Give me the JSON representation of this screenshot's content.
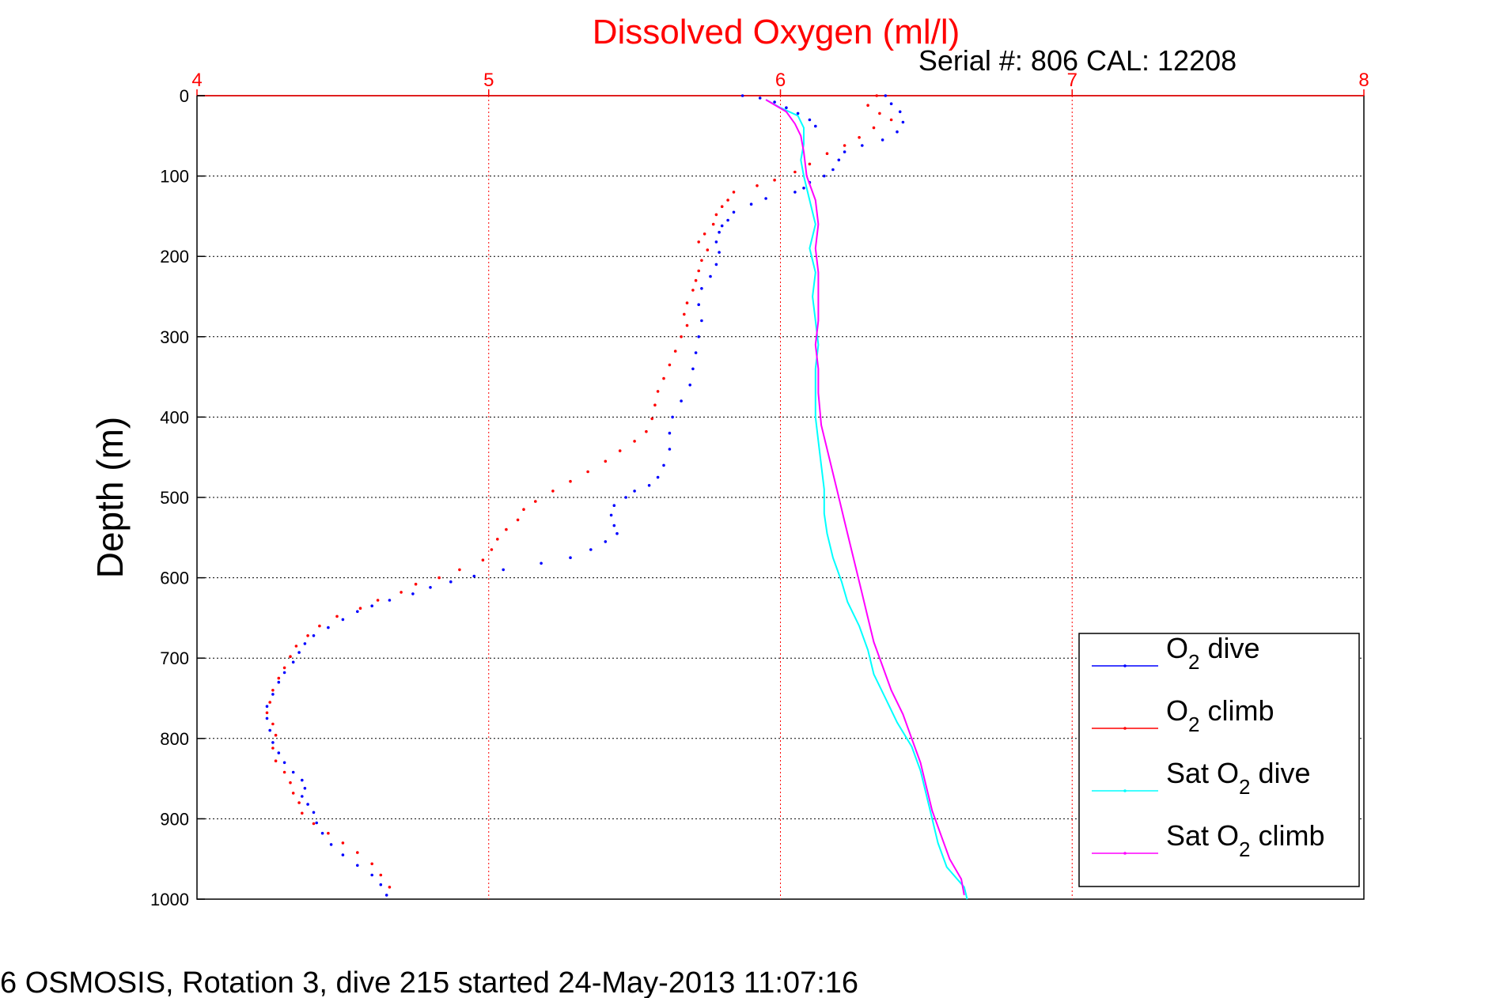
{
  "chart_data": {
    "type": "scatter",
    "title": "Dissolved Oxygen (ml/l)",
    "subtitle": "Serial #: 806  CAL: 12208",
    "ylabel": "Depth (m)",
    "footer": "6 OSMOSIS, Rotation 3, dive 215 started 24-May-2013 11:07:16",
    "xlim": [
      4,
      8
    ],
    "ylim": [
      0,
      1000
    ],
    "y_reversed": true,
    "x_axis_position": "top",
    "x_ticks": [
      "4",
      "5",
      "6",
      "7",
      "8"
    ],
    "y_ticks": [
      "0",
      "100",
      "200",
      "300",
      "400",
      "500",
      "600",
      "700",
      "800",
      "900",
      "1000"
    ],
    "grid": true,
    "legend_position": "bottom-right",
    "colors": {
      "title": "#ff0000",
      "x_axis": "#ff0000",
      "grid_x": "#ff0000",
      "grid_y": "#000000",
      "o2_dive": "#0000ff",
      "o2_climb": "#ff0000",
      "sat_dive": "#00ffff",
      "sat_climb": "#ff00ff"
    },
    "series": [
      {
        "name": "O2 dive",
        "legend_main": "O",
        "legend_sub": "2",
        "legend_rest": " dive",
        "style": "dots",
        "color": "#0000ff",
        "points": [
          [
            5.87,
            0
          ],
          [
            5.93,
            3
          ],
          [
            5.98,
            8
          ],
          [
            6.02,
            15
          ],
          [
            6.06,
            22
          ],
          [
            6.1,
            30
          ],
          [
            6.12,
            38
          ],
          [
            6.36,
            0
          ],
          [
            6.38,
            10
          ],
          [
            6.41,
            20
          ],
          [
            6.42,
            33
          ],
          [
            6.4,
            45
          ],
          [
            6.35,
            55
          ],
          [
            6.28,
            62
          ],
          [
            6.22,
            70
          ],
          [
            6.2,
            80
          ],
          [
            6.18,
            92
          ],
          [
            6.15,
            100
          ],
          [
            6.1,
            108
          ],
          [
            6.08,
            115
          ],
          [
            6.05,
            120
          ],
          [
            5.95,
            128
          ],
          [
            5.9,
            135
          ],
          [
            5.84,
            145
          ],
          [
            5.82,
            155
          ],
          [
            5.8,
            162
          ],
          [
            5.79,
            170
          ],
          [
            5.78,
            182
          ],
          [
            5.79,
            195
          ],
          [
            5.78,
            210
          ],
          [
            5.76,
            225
          ],
          [
            5.73,
            240
          ],
          [
            5.72,
            260
          ],
          [
            5.73,
            280
          ],
          [
            5.72,
            300
          ],
          [
            5.71,
            320
          ],
          [
            5.7,
            340
          ],
          [
            5.69,
            360
          ],
          [
            5.66,
            380
          ],
          [
            5.63,
            400
          ],
          [
            5.62,
            420
          ],
          [
            5.62,
            440
          ],
          [
            5.6,
            460
          ],
          [
            5.58,
            475
          ],
          [
            5.55,
            485
          ],
          [
            5.5,
            492
          ],
          [
            5.47,
            500
          ],
          [
            5.43,
            510
          ],
          [
            5.42,
            522
          ],
          [
            5.43,
            535
          ],
          [
            5.44,
            545
          ],
          [
            5.4,
            555
          ],
          [
            5.35,
            565
          ],
          [
            5.28,
            575
          ],
          [
            5.18,
            582
          ],
          [
            5.05,
            590
          ],
          [
            4.95,
            598
          ],
          [
            4.87,
            605
          ],
          [
            4.8,
            612
          ],
          [
            4.74,
            620
          ],
          [
            4.66,
            628
          ],
          [
            4.6,
            635
          ],
          [
            4.55,
            642
          ],
          [
            4.5,
            652
          ],
          [
            4.45,
            662
          ],
          [
            4.4,
            672
          ],
          [
            4.37,
            682
          ],
          [
            4.35,
            693
          ],
          [
            4.33,
            705
          ],
          [
            4.3,
            718
          ],
          [
            4.28,
            730
          ],
          [
            4.26,
            745
          ],
          [
            4.24,
            760
          ],
          [
            4.24,
            775
          ],
          [
            4.25,
            790
          ],
          [
            4.26,
            805
          ],
          [
            4.28,
            818
          ],
          [
            4.3,
            830
          ],
          [
            4.33,
            842
          ],
          [
            4.36,
            852
          ],
          [
            4.37,
            862
          ],
          [
            4.36,
            872
          ],
          [
            4.38,
            882
          ],
          [
            4.4,
            892
          ],
          [
            4.41,
            905
          ],
          [
            4.43,
            918
          ],
          [
            4.46,
            932
          ],
          [
            4.5,
            945
          ],
          [
            4.55,
            958
          ],
          [
            4.6,
            970
          ],
          [
            4.63,
            982
          ],
          [
            4.65,
            995
          ]
        ]
      },
      {
        "name": "O2 climb",
        "legend_main": "O",
        "legend_sub": "2",
        "legend_rest": " climb",
        "style": "dots",
        "color": "#ff0000",
        "points": [
          [
            6.33,
            0
          ],
          [
            6.3,
            12
          ],
          [
            6.34,
            22
          ],
          [
            6.38,
            30
          ],
          [
            6.32,
            40
          ],
          [
            6.27,
            52
          ],
          [
            6.22,
            62
          ],
          [
            6.16,
            72
          ],
          [
            6.1,
            85
          ],
          [
            6.05,
            95
          ],
          [
            5.98,
            105
          ],
          [
            5.92,
            112
          ],
          [
            5.84,
            120
          ],
          [
            5.82,
            130
          ],
          [
            5.8,
            138
          ],
          [
            5.78,
            148
          ],
          [
            5.77,
            160
          ],
          [
            5.74,
            172
          ],
          [
            5.72,
            182
          ],
          [
            5.75,
            192
          ],
          [
            5.73,
            205
          ],
          [
            5.72,
            218
          ],
          [
            5.71,
            230
          ],
          [
            5.7,
            242
          ],
          [
            5.68,
            258
          ],
          [
            5.67,
            272
          ],
          [
            5.68,
            286
          ],
          [
            5.66,
            300
          ],
          [
            5.64,
            318
          ],
          [
            5.62,
            335
          ],
          [
            5.6,
            352
          ],
          [
            5.58,
            368
          ],
          [
            5.57,
            385
          ],
          [
            5.56,
            402
          ],
          [
            5.54,
            418
          ],
          [
            5.5,
            430
          ],
          [
            5.45,
            442
          ],
          [
            5.4,
            455
          ],
          [
            5.34,
            468
          ],
          [
            5.28,
            480
          ],
          [
            5.22,
            492
          ],
          [
            5.16,
            505
          ],
          [
            5.12,
            515
          ],
          [
            5.1,
            528
          ],
          [
            5.06,
            540
          ],
          [
            5.03,
            552
          ],
          [
            5.01,
            565
          ],
          [
            4.98,
            578
          ],
          [
            4.9,
            590
          ],
          [
            4.83,
            600
          ],
          [
            4.75,
            608
          ],
          [
            4.7,
            618
          ],
          [
            4.62,
            628
          ],
          [
            4.56,
            638
          ],
          [
            4.48,
            648
          ],
          [
            4.42,
            660
          ],
          [
            4.38,
            672
          ],
          [
            4.34,
            685
          ],
          [
            4.32,
            698
          ],
          [
            4.3,
            712
          ],
          [
            4.28,
            725
          ],
          [
            4.26,
            740
          ],
          [
            4.25,
            755
          ],
          [
            4.24,
            768
          ],
          [
            4.26,
            782
          ],
          [
            4.27,
            796
          ],
          [
            4.26,
            812
          ],
          [
            4.27,
            828
          ],
          [
            4.3,
            842
          ],
          [
            4.32,
            855
          ],
          [
            4.33,
            868
          ],
          [
            4.35,
            880
          ],
          [
            4.36,
            893
          ],
          [
            4.4,
            906
          ],
          [
            4.45,
            918
          ],
          [
            4.5,
            930
          ],
          [
            4.55,
            942
          ],
          [
            4.6,
            956
          ],
          [
            4.63,
            970
          ],
          [
            4.66,
            985
          ]
        ]
      },
      {
        "name": "Sat O2 dive",
        "legend_main": "Sat O",
        "legend_sub": "2",
        "legend_rest": " dive",
        "style": "line",
        "color": "#00ffff",
        "points": [
          [
            5.95,
            5
          ],
          [
            6.0,
            15
          ],
          [
            6.06,
            25
          ],
          [
            6.08,
            40
          ],
          [
            6.08,
            60
          ],
          [
            6.07,
            80
          ],
          [
            6.08,
            100
          ],
          [
            6.1,
            130
          ],
          [
            6.12,
            160
          ],
          [
            6.1,
            190
          ],
          [
            6.12,
            220
          ],
          [
            6.11,
            250
          ],
          [
            6.12,
            280
          ],
          [
            6.13,
            310
          ],
          [
            6.12,
            340
          ],
          [
            6.12,
            370
          ],
          [
            6.12,
            400
          ],
          [
            6.13,
            430
          ],
          [
            6.14,
            460
          ],
          [
            6.15,
            490
          ],
          [
            6.15,
            520
          ],
          [
            6.16,
            545
          ],
          [
            6.18,
            575
          ],
          [
            6.21,
            605
          ],
          [
            6.23,
            630
          ],
          [
            6.27,
            660
          ],
          [
            6.3,
            690
          ],
          [
            6.32,
            720
          ],
          [
            6.36,
            750
          ],
          [
            6.4,
            780
          ],
          [
            6.45,
            810
          ],
          [
            6.48,
            840
          ],
          [
            6.5,
            870
          ],
          [
            6.52,
            900
          ],
          [
            6.54,
            930
          ],
          [
            6.57,
            960
          ],
          [
            6.63,
            985
          ],
          [
            6.64,
            1000
          ]
        ]
      },
      {
        "name": "Sat O2 climb",
        "legend_main": "Sat O",
        "legend_sub": "2",
        "legend_rest": " climb",
        "style": "line",
        "color": "#ff00ff",
        "points": [
          [
            5.95,
            5
          ],
          [
            6.02,
            20
          ],
          [
            6.05,
            35
          ],
          [
            6.07,
            50
          ],
          [
            6.08,
            70
          ],
          [
            6.09,
            100
          ],
          [
            6.12,
            130
          ],
          [
            6.13,
            160
          ],
          [
            6.12,
            190
          ],
          [
            6.13,
            220
          ],
          [
            6.13,
            250
          ],
          [
            6.13,
            280
          ],
          [
            6.12,
            310
          ],
          [
            6.13,
            340
          ],
          [
            6.13,
            370
          ],
          [
            6.14,
            410
          ],
          [
            6.16,
            440
          ],
          [
            6.18,
            470
          ],
          [
            6.2,
            500
          ],
          [
            6.22,
            530
          ],
          [
            6.24,
            560
          ],
          [
            6.26,
            590
          ],
          [
            6.28,
            620
          ],
          [
            6.3,
            650
          ],
          [
            6.32,
            680
          ],
          [
            6.35,
            710
          ],
          [
            6.38,
            740
          ],
          [
            6.42,
            770
          ],
          [
            6.45,
            800
          ],
          [
            6.48,
            830
          ],
          [
            6.5,
            860
          ],
          [
            6.52,
            890
          ],
          [
            6.55,
            920
          ],
          [
            6.58,
            950
          ],
          [
            6.62,
            975
          ],
          [
            6.63,
            995
          ]
        ]
      }
    ]
  }
}
